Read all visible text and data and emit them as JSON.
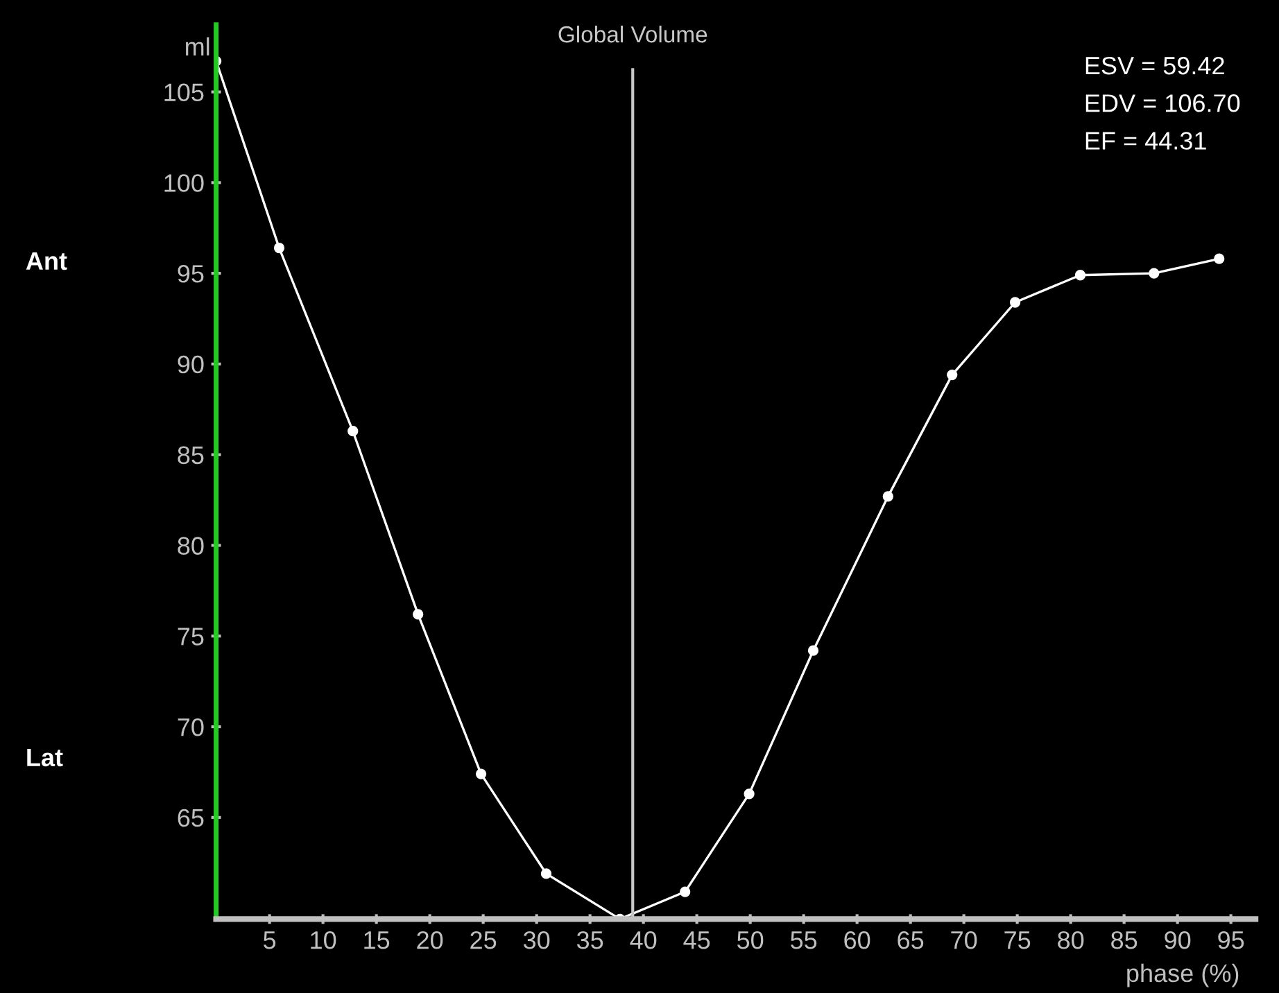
{
  "chart_data": {
    "type": "line",
    "xlabel": "phase (%)",
    "ylabel": "ml",
    "x": [
      0,
      5.9,
      12.8,
      18.9,
      24.8,
      30.9,
      37.8,
      43.9,
      49.9,
      55.9,
      62.9,
      68.9,
      74.8,
      80.9,
      87.8,
      93.9
    ],
    "series": [
      {
        "color": "#ffffff",
        "values": [
          106.7,
          96.4,
          86.3,
          76.2,
          67.4,
          61.9,
          59.4,
          60.9,
          66.3,
          74.2,
          82.7,
          89.4,
          93.4,
          94.9,
          95.0,
          95.8
        ]
      }
    ],
    "xlim": [
      0,
      97.3
    ],
    "ylim": [
      59.4,
      108.7
    ],
    "xticks": [
      5,
      10,
      15,
      20,
      25,
      30,
      35,
      40,
      45,
      50,
      55,
      60,
      65,
      70,
      75,
      80,
      85,
      90,
      95
    ],
    "yticks": [
      65,
      70,
      75,
      80,
      85,
      90,
      95,
      100,
      105
    ],
    "marker": "circle",
    "grid": false,
    "legend": false,
    "ref_lines": [
      {
        "axis": "x",
        "value": 39.0,
        "label": "Global Volume",
        "color": "#c8c8c8"
      }
    ],
    "annotations": [
      "ESV = 59.42",
      "EDV = 106.70",
      "EF = 44.31",
      "Ant",
      "Lat"
    ]
  }
}
